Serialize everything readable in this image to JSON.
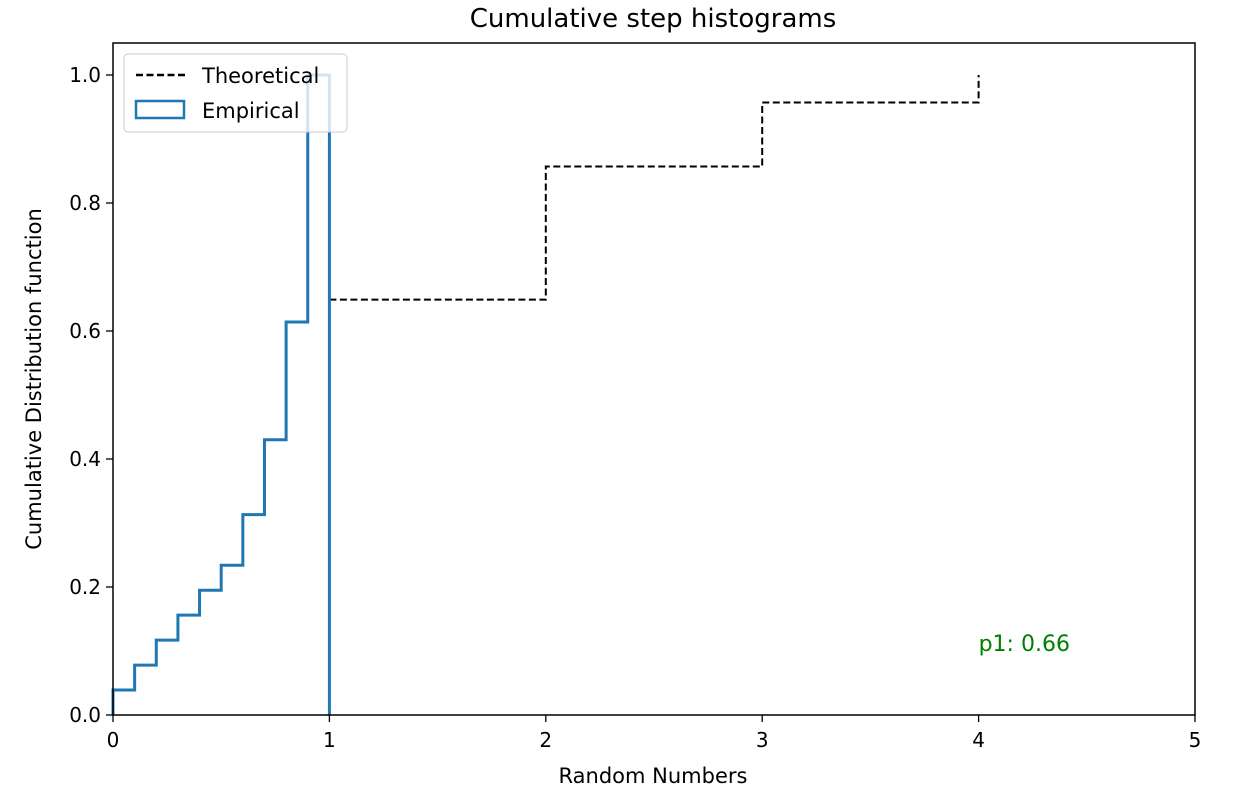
{
  "chart_data": {
    "type": "line",
    "title": "Cumulative step histograms",
    "xlabel": "Random Numbers",
    "ylabel": "Cumulative Distribution function",
    "xlim": [
      0,
      5
    ],
    "ylim": [
      0,
      1.05
    ],
    "x_ticks": [
      "0",
      "1",
      "2",
      "3",
      "4",
      "5"
    ],
    "y_ticks": [
      "0.0",
      "0.2",
      "0.4",
      "0.6",
      "0.8",
      "1.0"
    ],
    "grid": false,
    "legend_placement": "top-left",
    "series": [
      {
        "name": "Theoretical",
        "style": "dashed",
        "color": "#000000",
        "steps": [
          {
            "x0": 1,
            "x1": 2,
            "y": 0.649
          },
          {
            "x0": 2,
            "x1": 3,
            "y": 0.857
          },
          {
            "x0": 3,
            "x1": 4,
            "y": 0.957
          },
          {
            "x0": 4,
            "x1": 4,
            "y": 1.0
          }
        ]
      },
      {
        "name": "Empirical",
        "style": "step",
        "color": "#1f77b4",
        "bin_edges": [
          0,
          0.1,
          0.2,
          0.3,
          0.4,
          0.5,
          0.6,
          0.7,
          0.8,
          0.9,
          1.0
        ],
        "values": [
          0.039,
          0.078,
          0.117,
          0.156,
          0.195,
          0.234,
          0.313,
          0.43,
          0.614,
          1.0
        ]
      }
    ],
    "annotations": [
      {
        "text": "p1: 0.66",
        "x": 4.0,
        "y": 0.1,
        "color": "#008000"
      }
    ]
  }
}
